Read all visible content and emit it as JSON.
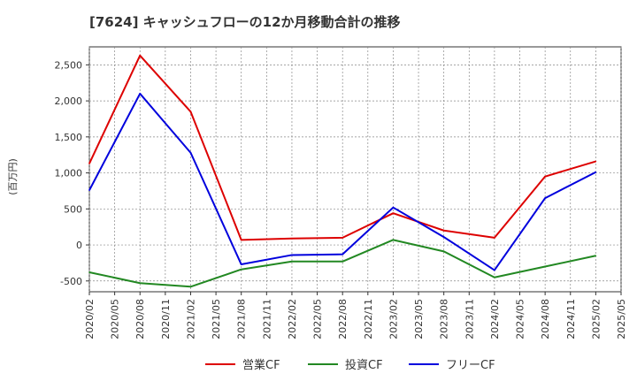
{
  "chart_data": {
    "type": "line",
    "title": "[7624]  キャッシュフローの12か月移動合計の推移",
    "ylabel": "(百万円)",
    "xlabel": "",
    "ylim": [
      -650,
      2750
    ],
    "y_ticks": [
      -500,
      0,
      500,
      1000,
      1500,
      2000,
      2500
    ],
    "y_tick_labels": [
      "-500",
      "0",
      "500",
      "1,000",
      "1,500",
      "2,000",
      "2,500"
    ],
    "x_ticks": [
      "2020/02",
      "2020/05",
      "2020/08",
      "2020/11",
      "2021/02",
      "2021/05",
      "2021/08",
      "2021/11",
      "2022/02",
      "2022/05",
      "2022/08",
      "2022/11",
      "2023/02",
      "2023/05",
      "2023/08",
      "2023/11",
      "2024/02",
      "2024/05",
      "2024/08",
      "2024/11",
      "2025/02",
      "2025/05"
    ],
    "grid": true,
    "legend_position": "bottom",
    "series": [
      {
        "name": "営業CF",
        "color": "#dd0000",
        "x": [
          "2020/02",
          "2020/08",
          "2021/02",
          "2021/08",
          "2022/02",
          "2022/08",
          "2023/02",
          "2023/08",
          "2024/02",
          "2024/08",
          "2025/02"
        ],
        "values": [
          1130,
          2630,
          1850,
          70,
          90,
          100,
          440,
          200,
          100,
          950,
          1160
        ]
      },
      {
        "name": "投資CF",
        "color": "#228822",
        "x": [
          "2020/02",
          "2020/08",
          "2021/02",
          "2021/08",
          "2022/02",
          "2022/08",
          "2023/02",
          "2023/08",
          "2024/02",
          "2024/08",
          "2025/02"
        ],
        "values": [
          -380,
          -530,
          -580,
          -340,
          -230,
          -230,
          70,
          -90,
          -450,
          -300,
          -150
        ]
      },
      {
        "name": "フリーCF",
        "color": "#0000dd",
        "x": [
          "2020/02",
          "2020/08",
          "2021/02",
          "2021/08",
          "2022/02",
          "2022/08",
          "2023/02",
          "2023/08",
          "2024/02",
          "2024/08",
          "2025/02"
        ],
        "values": [
          760,
          2100,
          1280,
          -270,
          -140,
          -130,
          520,
          110,
          -350,
          650,
          1010
        ]
      }
    ]
  }
}
